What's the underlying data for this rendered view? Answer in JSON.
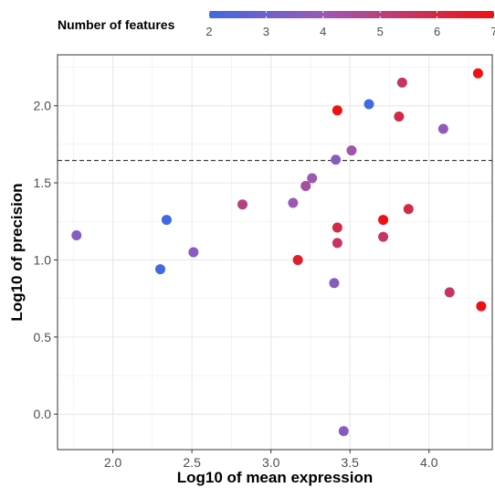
{
  "chart_data": {
    "type": "scatter",
    "xlabel": "Log10 of mean expression",
    "ylabel": "Log10 of precision",
    "xlim": [
      1.65,
      4.4
    ],
    "ylim": [
      -0.23,
      2.33
    ],
    "x_ticks": [
      "2.0",
      "2.5",
      "3.0",
      "3.5",
      "4.0"
    ],
    "y_ticks": [
      "0.0",
      "0.5",
      "1.0",
      "1.5",
      "2.0"
    ],
    "x_tick_values": [
      2.0,
      2.5,
      3.0,
      3.5,
      4.0
    ],
    "y_tick_values": [
      0.0,
      0.5,
      1.0,
      1.5,
      2.0
    ],
    "hline": {
      "y": 1.645,
      "style": "dashed"
    },
    "grid": true,
    "legend": {
      "title": "Number of features",
      "placement": "top",
      "ticks": [
        "2",
        "3",
        "4",
        "5",
        "6",
        "7"
      ],
      "tick_values": [
        2,
        3,
        4,
        5,
        6,
        7
      ],
      "range": [
        2,
        7
      ],
      "low_color": "#4169e1",
      "mid_color": "#9b59b6",
      "high_color": "#ee1111"
    },
    "points": [
      {
        "x": 1.77,
        "y": 1.16,
        "features": 3.5
      },
      {
        "x": 2.3,
        "y": 0.94,
        "features": 2.0
      },
      {
        "x": 2.34,
        "y": 1.26,
        "features": 2.0
      },
      {
        "x": 2.51,
        "y": 1.05,
        "features": 3.6
      },
      {
        "x": 2.82,
        "y": 1.36,
        "features": 5.0
      },
      {
        "x": 3.14,
        "y": 1.37,
        "features": 4.0
      },
      {
        "x": 3.17,
        "y": 1.0,
        "features": 6.5
      },
      {
        "x": 3.22,
        "y": 1.48,
        "features": 4.4
      },
      {
        "x": 3.26,
        "y": 1.53,
        "features": 4.0
      },
      {
        "x": 3.4,
        "y": 0.85,
        "features": 3.5
      },
      {
        "x": 3.41,
        "y": 1.65,
        "features": 3.5
      },
      {
        "x": 3.42,
        "y": 1.97,
        "features": 7.0
      },
      {
        "x": 3.42,
        "y": 1.21,
        "features": 6.0
      },
      {
        "x": 3.42,
        "y": 1.11,
        "features": 5.5
      },
      {
        "x": 3.46,
        "y": -0.11,
        "features": 3.5
      },
      {
        "x": 3.51,
        "y": 1.71,
        "features": 4.2
      },
      {
        "x": 3.62,
        "y": 2.01,
        "features": 2.0
      },
      {
        "x": 3.71,
        "y": 1.26,
        "features": 7.0
      },
      {
        "x": 3.71,
        "y": 1.15,
        "features": 5.5
      },
      {
        "x": 3.81,
        "y": 1.93,
        "features": 6.0
      },
      {
        "x": 3.83,
        "y": 2.15,
        "features": 5.5
      },
      {
        "x": 3.87,
        "y": 1.33,
        "features": 6.0
      },
      {
        "x": 4.09,
        "y": 1.85,
        "features": 3.8
      },
      {
        "x": 4.13,
        "y": 0.79,
        "features": 5.5
      },
      {
        "x": 4.31,
        "y": 2.21,
        "features": 7.0
      },
      {
        "x": 4.33,
        "y": 0.7,
        "features": 7.0
      }
    ]
  }
}
